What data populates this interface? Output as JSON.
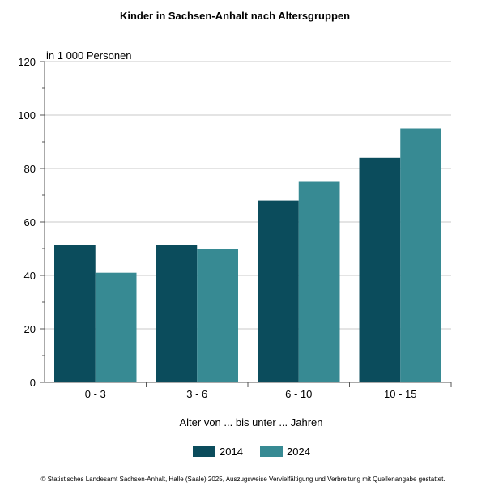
{
  "chart_data": {
    "type": "bar",
    "title": "Kinder in Sachsen-Anhalt nach Altersgruppen",
    "unit_label": "in 1 000 Personen",
    "xlabel": "Alter von ... bis unter ... Jahren",
    "ylabel": "",
    "ylim": [
      0,
      120
    ],
    "yticks": [
      0,
      20,
      40,
      60,
      80,
      100,
      120
    ],
    "grid": true,
    "legend_position": "bottom",
    "categories": [
      "0 - 3",
      "3 - 6",
      "6 - 10",
      "10 - 15"
    ],
    "series": [
      {
        "name": "2014",
        "color": "#0b4c5c",
        "values": [
          51.5,
          51.5,
          68,
          84
        ]
      },
      {
        "name": "2024",
        "color": "#378a93",
        "values": [
          41,
          50,
          75,
          95
        ]
      }
    ]
  },
  "footer": "© Statistisches Landesamt Sachsen-Anhalt, Halle (Saale) 2025, Auszugsweise Vervielfältigung und Verbreitung mit Quellenangabe gestattet."
}
